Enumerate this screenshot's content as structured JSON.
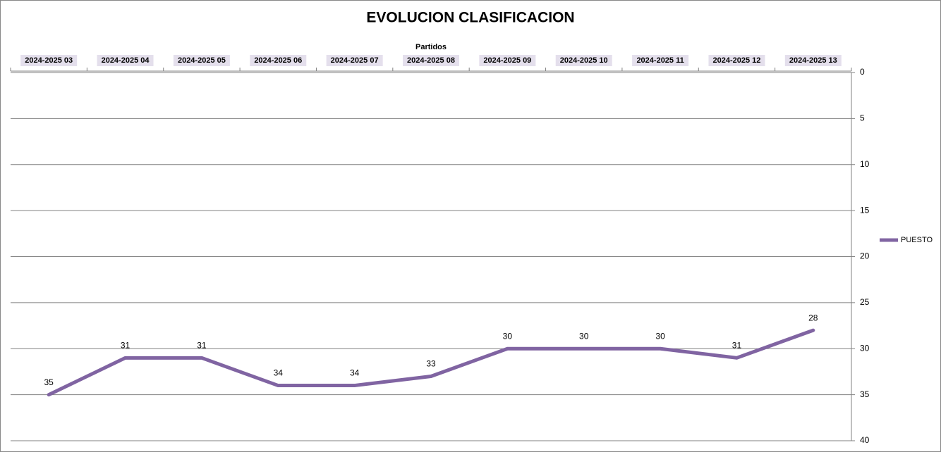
{
  "chart_data": {
    "type": "line",
    "title": "EVOLUCION CLASIFICACION",
    "x_label": "Partidos",
    "categories": [
      "2024-2025 03",
      "2024-2025 04",
      "2024-2025 05",
      "2024-2025 06",
      "2024-2025 07",
      "2024-2025 08",
      "2024-2025 09",
      "2024-2025 10",
      "2024-2025 11",
      "2024-2025 12",
      "2024-2025 13"
    ],
    "series": [
      {
        "name": "PUESTO",
        "color": "#8064a2",
        "values": [
          35,
          31,
          31,
          34,
          34,
          33,
          30,
          30,
          30,
          31,
          28
        ]
      }
    ],
    "ylim": [
      0,
      40
    ],
    "yticks": [
      0,
      5,
      10,
      15,
      20,
      25,
      30,
      35,
      40
    ],
    "y_reversed": true,
    "grid": true,
    "legend": "right"
  }
}
